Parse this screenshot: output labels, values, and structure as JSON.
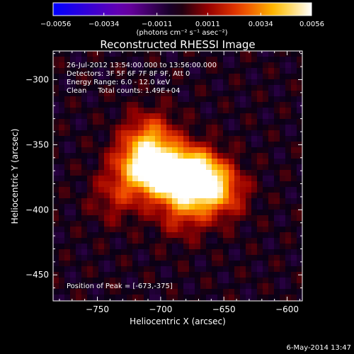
{
  "chart_data": {
    "type": "heatmap",
    "title": "Reconstructed RHESSI Image",
    "xlabel": "Heliocentric X (arcsec)",
    "ylabel": "Heliocentric Y (arcsec)",
    "xlim": [
      -785,
      -588
    ],
    "ylim": [
      -470,
      -278
    ],
    "x_ticks": [
      -750,
      -700,
      -650,
      -600
    ],
    "x_tick_labels": [
      "−750",
      "−700",
      "−650",
      "−600"
    ],
    "y_ticks": [
      -300,
      -350,
      -400,
      -450
    ],
    "y_tick_labels": [
      "−300",
      "−350",
      "−400",
      "−450"
    ],
    "colorbar": {
      "min": -0.0056,
      "max": 0.0056,
      "ticks": [
        -0.0056,
        -0.0034,
        -0.0011,
        0.0011,
        0.0034,
        0.0056
      ],
      "tick_labels": [
        "−0.0056",
        "−0.0034",
        "−0.0011",
        "0.0011",
        "0.0034",
        "0.0056"
      ],
      "units": "(photons cm⁻² s⁻¹ asec⁻²)"
    },
    "sources": [
      {
        "x": -673,
        "y": -375,
        "amplitude": 1.0
      },
      {
        "x": -698,
        "y": -372,
        "amplitude": 0.75
      },
      {
        "x": -718,
        "y": -366,
        "amplitude": 0.5
      },
      {
        "x": -708,
        "y": -345,
        "amplitude": 0.42
      },
      {
        "x": -653,
        "y": -386,
        "amplitude": 0.45
      },
      {
        "x": -683,
        "y": -402,
        "amplitude": 0.28
      },
      {
        "x": -735,
        "y": -390,
        "amplitude": 0.22
      }
    ],
    "peak": {
      "x": -673,
      "y": -375
    },
    "annotations": [
      "26-Jul-2012 13:54:00.000 to 13:56:00.000",
      "Detectors: 3F 5F 6F 7F 8F 9F, Att 0",
      "Energy Range: 6.0 - 12.0 keV",
      "Clean     Total counts: 1.49E+04"
    ],
    "peak_label": "Position of Peak = [-673,-375]"
  },
  "footer": {
    "timestamp": "6-May-2014 13:47"
  }
}
